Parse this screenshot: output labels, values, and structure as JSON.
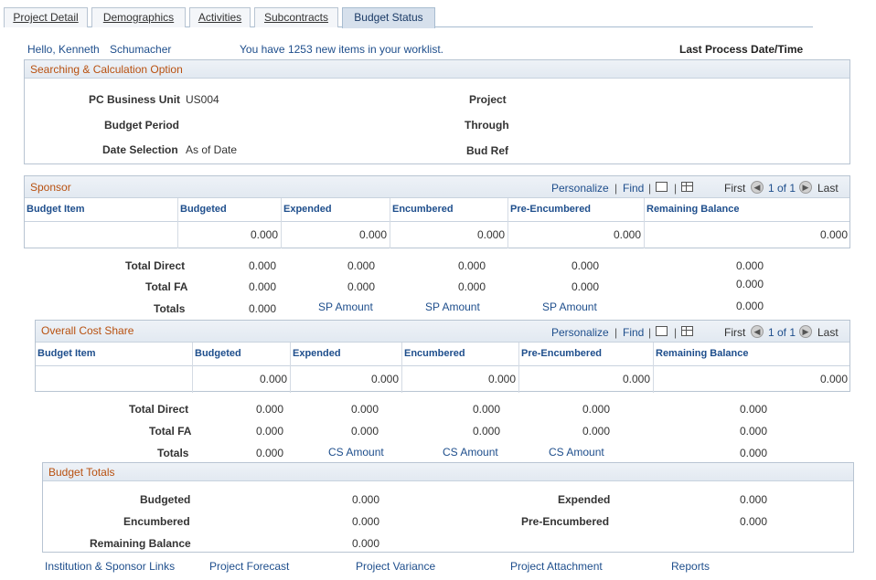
{
  "tabs": [
    {
      "label": "Project Detail",
      "active": false
    },
    {
      "label": "Demographics",
      "active": false
    },
    {
      "label": "Activities",
      "active": false
    },
    {
      "label": "Subcontracts",
      "active": false
    },
    {
      "label": "Budget Status",
      "active": true
    }
  ],
  "header": {
    "greeting": "Hello, Kenneth",
    "user_last": "Schumacher",
    "worklist": "You have 1253 new items in your worklist.",
    "last_process": "Last Process Date/Time"
  },
  "search": {
    "title": "Searching & Calculation Option",
    "pc_bu_label": "PC Business Unit",
    "pc_bu_value": "US004",
    "budget_period_label": "Budget Period",
    "date_selection_label": "Date Selection",
    "date_selection_value": "As of Date",
    "project_label": "Project",
    "through_label": "Through",
    "bud_ref_label": "Bud Ref"
  },
  "grid_nav": {
    "personalize": "Personalize",
    "find": "Find",
    "first": "First",
    "pager": "1 of 1",
    "last": "Last"
  },
  "columns": [
    "Budget Item",
    "Budgeted",
    "Expended",
    "Encumbered",
    "Pre-Encumbered",
    "Remaining Balance"
  ],
  "sponsor": {
    "title": "Sponsor",
    "row": [
      "",
      "0.000",
      "0.000",
      "0.000",
      "0.000",
      "0.000"
    ],
    "totals": {
      "total_direct_label": "Total Direct",
      "total_fa_label": "Total FA",
      "totals_label": "Totals",
      "total_direct": [
        "0.000",
        "0.000",
        "0.000",
        "0.000",
        "0.000"
      ],
      "total_fa": [
        "0.000",
        "0.000",
        "0.000",
        "0.000",
        "0.000"
      ],
      "totals_value": "0.000",
      "totals_links": [
        "SP Amount",
        "SP Amount",
        "SP Amount"
      ],
      "totals_remaining": "0.000"
    }
  },
  "cost_share": {
    "title": "Overall Cost Share",
    "row": [
      "",
      "0.000",
      "0.000",
      "0.000",
      "0.000",
      "0.000"
    ],
    "totals": {
      "total_direct_label": "Total Direct",
      "total_fa_label": "Total FA",
      "totals_label": "Totals",
      "total_direct": [
        "0.000",
        "0.000",
        "0.000",
        "0.000",
        "0.000"
      ],
      "total_fa": [
        "0.000",
        "0.000",
        "0.000",
        "0.000",
        "0.000"
      ],
      "totals_value": "0.000",
      "totals_links": [
        "CS Amount",
        "CS Amount",
        "CS Amount"
      ],
      "totals_remaining": "0.000"
    }
  },
  "budget_totals": {
    "title": "Budget Totals",
    "budgeted_label": "Budgeted",
    "budgeted": "0.000",
    "encumbered_label": "Encumbered",
    "encumbered": "0.000",
    "remaining_label": "Remaining Balance",
    "remaining": "0.000",
    "expended_label": "Expended",
    "expended": "0.000",
    "pre_encumbered_label": "Pre-Encumbered",
    "pre_encumbered": "0.000"
  },
  "footer_links": [
    "Institution & Sponsor Links",
    "Project Forecast",
    "Project Variance",
    "Project Attachment",
    "Reports"
  ]
}
